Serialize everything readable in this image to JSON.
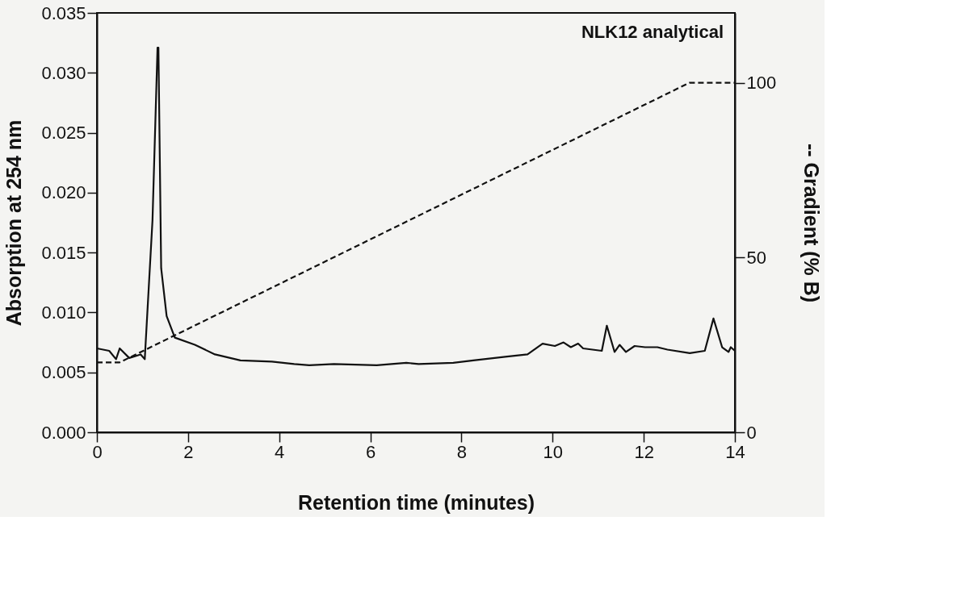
{
  "chart_data": {
    "type": "line",
    "xlabel": "Retention time (minutes)",
    "ylabel": "Absorption at 254 nm",
    "y2label": "-- Gradient (% B)",
    "annotations": [
      "NLK12 analytical"
    ],
    "xlim": [
      0,
      14
    ],
    "xticks": [
      0,
      2,
      4,
      6,
      8,
      10,
      12,
      14
    ],
    "ylim": [
      0,
      0.035
    ],
    "yticks": [
      {
        "value": 0,
        "label": "0.000"
      },
      {
        "value": 0.005,
        "label": "0.005"
      },
      {
        "value": 0.01,
        "label": "0.010"
      },
      {
        "value": 0.015,
        "label": "0.015"
      },
      {
        "value": 0.02,
        "label": "0.020"
      },
      {
        "value": 0.025,
        "label": "0.025"
      },
      {
        "value": 0.03,
        "label": "0.030"
      },
      {
        "value": 0.035,
        "label": "0.035"
      }
    ],
    "y2lim": [
      0,
      120
    ],
    "y2ticks": [
      0,
      50,
      100
    ],
    "marker": "none",
    "series": [
      {
        "color": "#111111",
        "line_style": "solid",
        "x": [
          0,
          0.27,
          0.42,
          0.5,
          0.71,
          0.96,
          1.05,
          1.22,
          1.33,
          1.35,
          1.41,
          1.53,
          1.71,
          2.15,
          2.59,
          3.15,
          3.84,
          4.33,
          4.66,
          5.2,
          6.14,
          6.79,
          7.06,
          7.82,
          8.26,
          8.96,
          9.45,
          9.78,
          10.05,
          10.24,
          10.4,
          10.56,
          10.67,
          11.08,
          11.19,
          11.36,
          11.47,
          11.61,
          11.8,
          12.03,
          12.3,
          12.52,
          13.01,
          13.34,
          13.53,
          13.72,
          13.86,
          13.91,
          14
        ],
        "values": [
          0.007,
          0.0068,
          0.0061,
          0.007,
          0.0062,
          0.0065,
          0.0061,
          0.0177,
          0.0321,
          0.0321,
          0.0137,
          0.0097,
          0.0079,
          0.0073,
          0.0065,
          0.006,
          0.0059,
          0.0057,
          0.0056,
          0.0057,
          0.0056,
          0.0058,
          0.0057,
          0.0058,
          0.006,
          0.0063,
          0.0065,
          0.0074,
          0.0072,
          0.0075,
          0.0071,
          0.0074,
          0.007,
          0.0068,
          0.0089,
          0.0067,
          0.0073,
          0.0067,
          0.0072,
          0.0071,
          0.0071,
          0.0069,
          0.0066,
          0.0068,
          0.0095,
          0.0071,
          0.0067,
          0.0071,
          0.0068
        ]
      },
      {
        "color": "#111111",
        "line_style": "dashed",
        "axis": "y2",
        "x": [
          0,
          0.5,
          13,
          14
        ],
        "values": [
          20,
          20,
          100,
          100
        ]
      }
    ]
  }
}
